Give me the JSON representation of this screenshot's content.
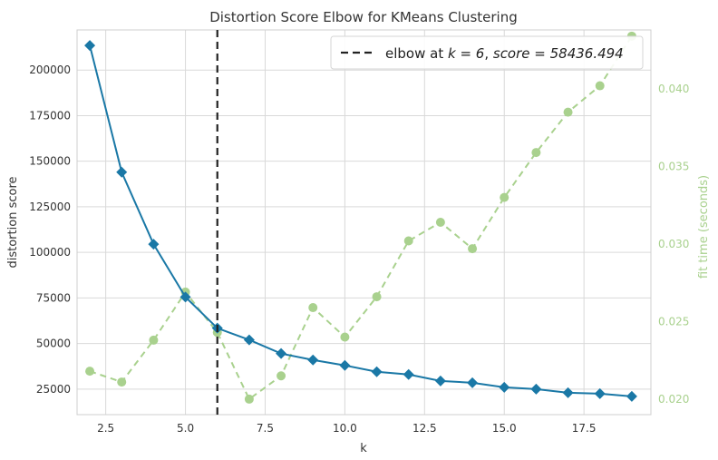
{
  "chart_data": {
    "type": "line",
    "title": "Distortion Score Elbow for KMeans Clustering",
    "xlabel": "k",
    "ylabel": "distortion score",
    "y2label": "fit time (seconds)",
    "xlim": [
      1.6,
      19.6
    ],
    "ylim": [
      11000,
      222000
    ],
    "y2lim": [
      0.019,
      0.0438
    ],
    "x_ticks": [
      2.5,
      5.0,
      7.5,
      10.0,
      12.5,
      15.0,
      17.5
    ],
    "x_tick_labels": [
      "2.5",
      "5.0",
      "7.5",
      "10.0",
      "12.5",
      "15.0",
      "17.5"
    ],
    "y_ticks": [
      25000,
      50000,
      75000,
      100000,
      125000,
      150000,
      175000,
      200000
    ],
    "y_tick_labels": [
      "25000",
      "50000",
      "75000",
      "100000",
      "125000",
      "150000",
      "175000",
      "200000"
    ],
    "y2_ticks": [
      0.02,
      0.025,
      0.03,
      0.035,
      0.04
    ],
    "y2_tick_labels": [
      "0.020",
      "0.025",
      "0.030",
      "0.035",
      "0.040"
    ],
    "grid": true,
    "legend_position": "top-right",
    "series": [
      {
        "axis": "left",
        "marker": "diamond",
        "x": [
          2,
          3,
          4,
          5,
          6,
          7,
          8,
          9,
          10,
          11,
          12,
          13,
          14,
          15,
          16,
          17,
          18,
          19
        ],
        "values": [
          213500,
          144000,
          104500,
          75500,
          58436.494,
          52000,
          44500,
          41000,
          38000,
          34500,
          33000,
          29500,
          28500,
          26000,
          25000,
          23000,
          22500,
          21000
        ]
      },
      {
        "axis": "right",
        "marker": "circle",
        "x": [
          2,
          3,
          4,
          5,
          6,
          7,
          8,
          9,
          10,
          11,
          12,
          13,
          14,
          15,
          16,
          17,
          18,
          19
        ],
        "values": [
          0.0218,
          0.0211,
          0.0238,
          0.0269,
          0.0243,
          0.02,
          0.0215,
          0.0259,
          0.024,
          0.0266,
          0.0302,
          0.0314,
          0.0297,
          0.033,
          0.0359,
          0.0385,
          0.0402,
          0.0434
        ]
      }
    ],
    "elbow": {
      "k": 6,
      "score": 58436.494,
      "legend_label_prefix": "elbow at ",
      "legend_label_k": "k = 6",
      "legend_label_sep": ", ",
      "legend_label_score": "score = 58436.494"
    },
    "colors": {
      "distortion": "#1a78a6",
      "fit_time": "#a9d18e",
      "elbow_line": "#222222",
      "grid": "#d9d9d9",
      "axis_text": "#333333",
      "right_axis_text": "#a9d18e"
    }
  }
}
